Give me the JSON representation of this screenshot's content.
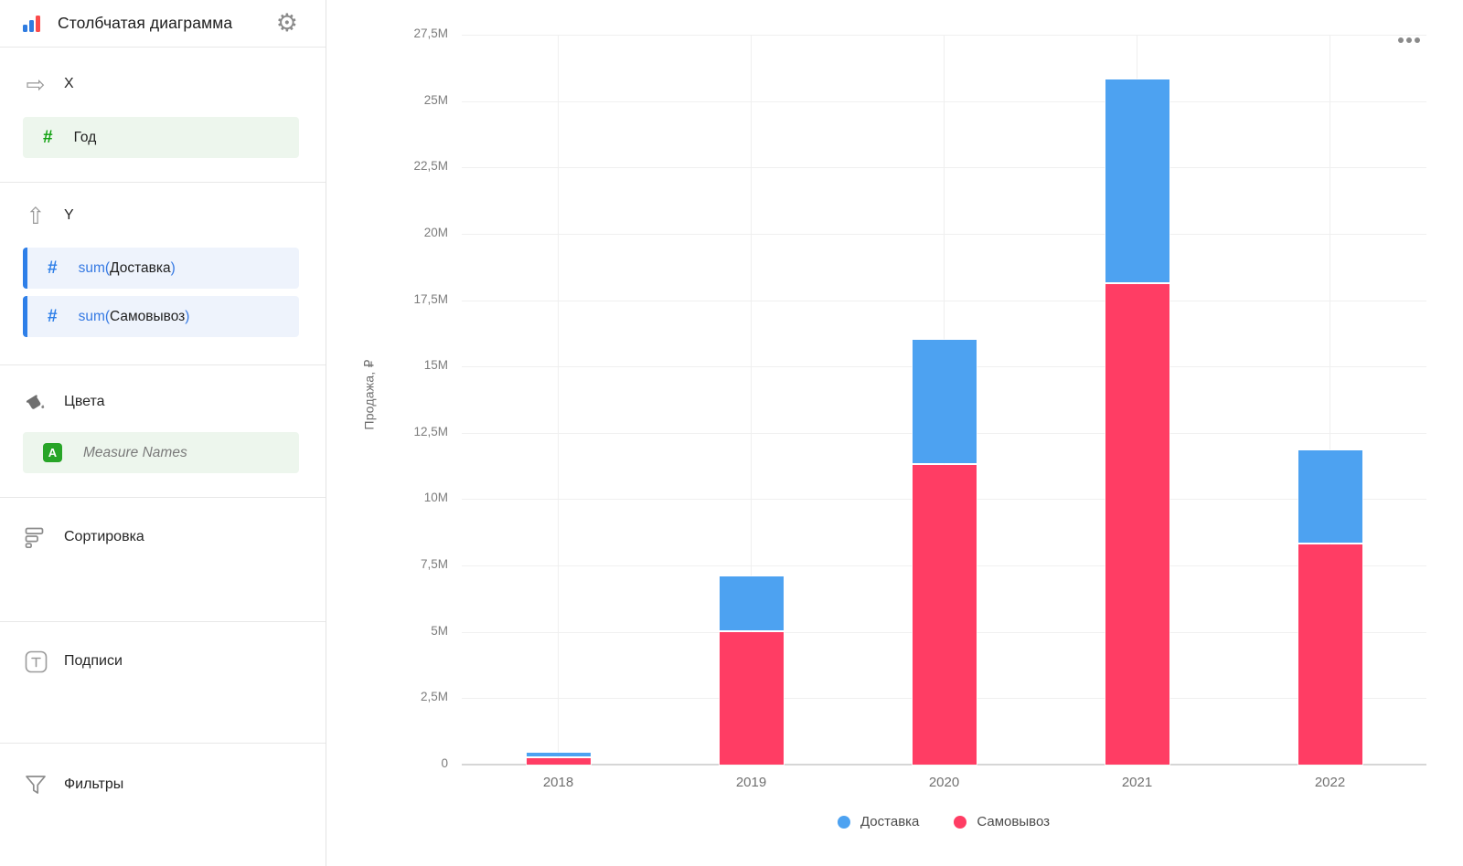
{
  "header": {
    "title": "Столбчатая диаграмма"
  },
  "icons": {
    "gear": "⚙",
    "arrow_right": "⇨",
    "arrow_up": "⇧"
  },
  "sections": {
    "x": {
      "label": "X",
      "field": {
        "name": "Год"
      }
    },
    "y": {
      "label": "Y",
      "fields": [
        {
          "prefix": "sum(",
          "name": "Доставка",
          "suffix": ")"
        },
        {
          "prefix": "sum(",
          "name": "Самовывоз",
          "suffix": ")"
        }
      ]
    },
    "colors": {
      "label": "Цвета",
      "field": {
        "name": "Measure Names",
        "badge": "A"
      }
    },
    "sorting": {
      "label": "Сортировка"
    },
    "labels": {
      "label": "Подписи"
    },
    "filters": {
      "label": "Фильтры"
    }
  },
  "chart_data": {
    "type": "bar",
    "stacked": true,
    "title": "",
    "xlabel": "",
    "ylabel": "Продажа, ₽",
    "categories": [
      "2018",
      "2019",
      "2020",
      "2021",
      "2022"
    ],
    "series": [
      {
        "name": "Доставка",
        "color": "#4DA2F1",
        "values": [
          0.2,
          2.1,
          4.7,
          7.7,
          3.55
        ]
      },
      {
        "name": "Самовывоз",
        "color": "#FF3D64",
        "values": [
          0.25,
          5.0,
          11.3,
          18.1,
          8.3
        ]
      }
    ],
    "value_unit": "M",
    "ylim": [
      0,
      27.5
    ],
    "ytick_step": 2.5,
    "ytick_labels": [
      "0",
      "2,5M",
      "5M",
      "7,5M",
      "10M",
      "12,5M",
      "15M",
      "17,5M",
      "20M",
      "22,5M",
      "25M",
      "27,5M"
    ],
    "grid": true,
    "legend_position": "bottom"
  }
}
